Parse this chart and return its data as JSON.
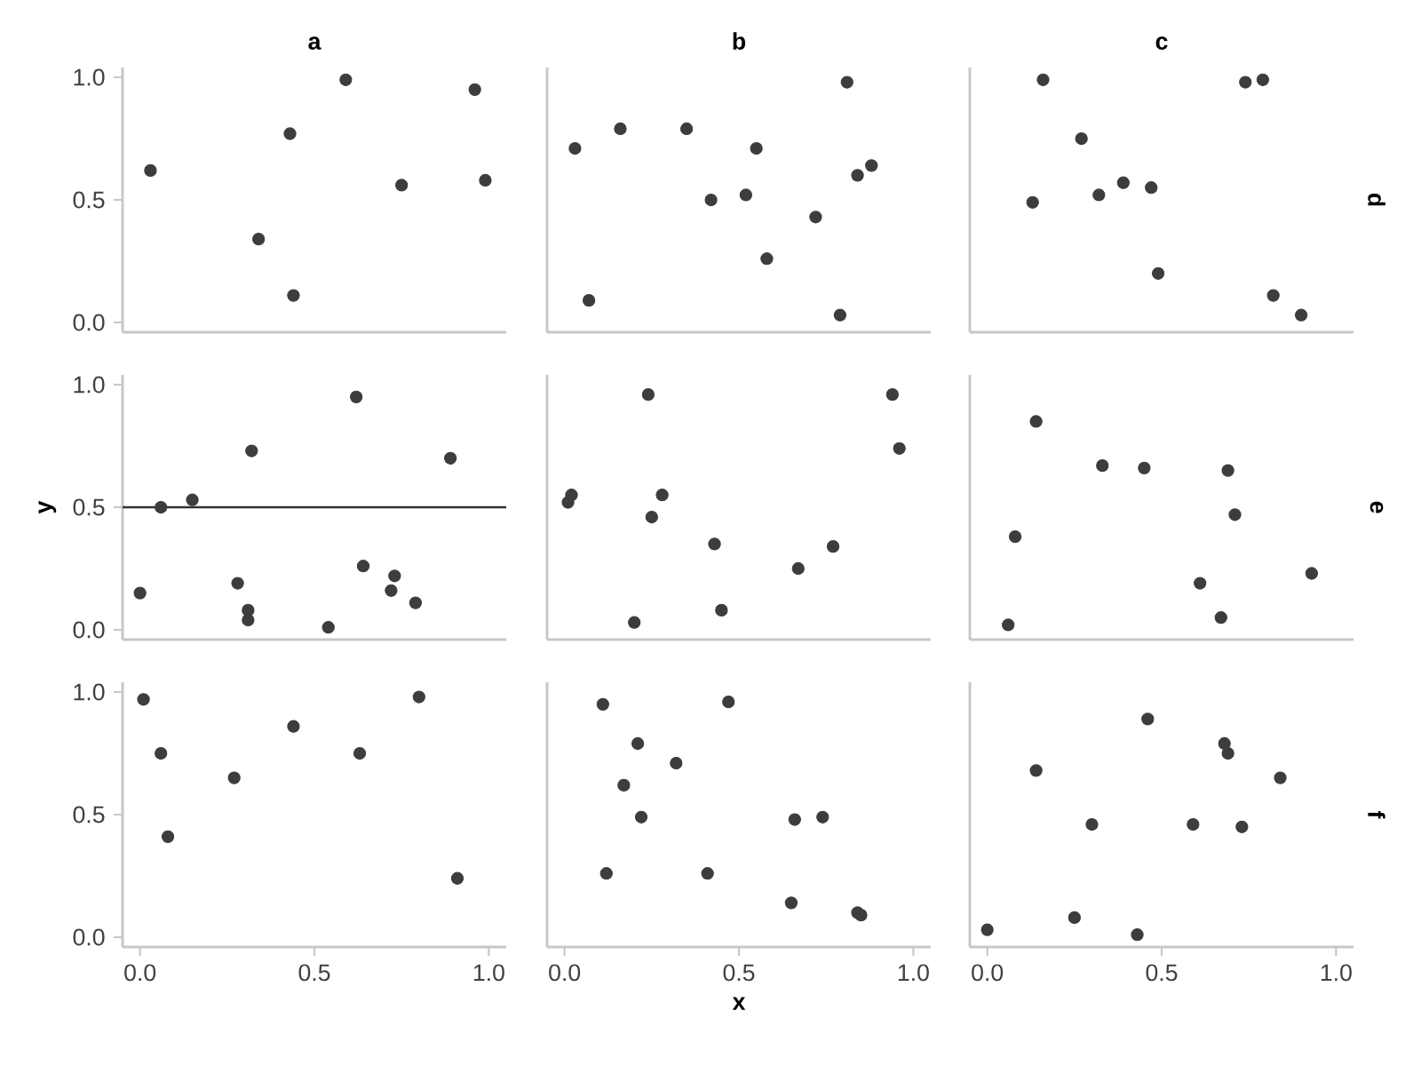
{
  "chart_data": [
    {
      "type": "scatter",
      "title": "a",
      "x": [
        0.03,
        0.34,
        0.43,
        0.44,
        0.59,
        0.75,
        0.96,
        0.99
      ],
      "values": [
        0.62,
        0.34,
        0.77,
        0.11,
        0.99,
        0.56,
        0.95,
        0.58
      ],
      "color": "#3d3d3d",
      "marker": "circle",
      "xlim": [
        -0.05,
        1.05
      ],
      "ylim": [
        -0.04,
        1.04
      ],
      "yticks": [
        {
          "value": 0,
          "label": "0.0"
        },
        {
          "value": 0.5,
          "label": "0.5"
        },
        {
          "value": 1,
          "label": "1.0"
        }
      ],
      "tick_labels": "y"
    },
    {
      "type": "scatter",
      "title": "b",
      "x": [
        0.03,
        0.07,
        0.16,
        0.35,
        0.42,
        0.52,
        0.55,
        0.58,
        0.72,
        0.79,
        0.81,
        0.84,
        0.88
      ],
      "values": [
        0.71,
        0.09,
        0.79,
        0.79,
        0.5,
        0.52,
        0.71,
        0.26,
        0.43,
        0.03,
        0.98,
        0.6,
        0.64
      ],
      "color": "#3d3d3d",
      "marker": "circle",
      "xlim": [
        -0.05,
        1.05
      ],
      "ylim": [
        -0.04,
        1.04
      ],
      "tick_labels": false
    },
    {
      "type": "scatter",
      "title": "c",
      "y2label": "d",
      "x": [
        0.13,
        0.16,
        0.27,
        0.32,
        0.39,
        0.47,
        0.49,
        0.74,
        0.79,
        0.82,
        0.9
      ],
      "values": [
        0.49,
        0.99,
        0.75,
        0.52,
        0.57,
        0.55,
        0.2,
        0.98,
        0.99,
        0.11,
        0.03
      ],
      "color": "#3d3d3d",
      "marker": "circle",
      "xlim": [
        -0.05,
        1.05
      ],
      "ylim": [
        -0.04,
        1.04
      ],
      "tick_labels": false
    },
    {
      "type": "scatter",
      "ylabel": "y",
      "x": [
        0.0,
        0.06,
        0.15,
        0.28,
        0.32,
        0.31,
        0.31,
        0.54,
        0.62,
        0.64,
        0.72,
        0.73,
        0.79,
        0.89
      ],
      "values": [
        0.15,
        0.5,
        0.53,
        0.19,
        0.73,
        0.04,
        0.08,
        0.01,
        0.95,
        0.26,
        0.16,
        0.22,
        0.11,
        0.7
      ],
      "color": "#3d3d3d",
      "marker": "circle",
      "xlim": [
        -0.05,
        1.05
      ],
      "ylim": [
        -0.04,
        1.04
      ],
      "yticks": [
        {
          "value": 0,
          "label": "0.0"
        },
        {
          "value": 0.5,
          "label": "0.5"
        },
        {
          "value": 1,
          "label": "1.0"
        }
      ],
      "tick_labels": "y",
      "ref_lines": [
        {
          "axis": "y",
          "value": 0.5,
          "color": "#333333"
        }
      ]
    },
    {
      "type": "scatter",
      "x": [
        0.01,
        0.02,
        0.2,
        0.24,
        0.25,
        0.28,
        0.43,
        0.45,
        0.67,
        0.77,
        0.94,
        0.96
      ],
      "values": [
        0.52,
        0.55,
        0.03,
        0.96,
        0.46,
        0.55,
        0.35,
        0.08,
        0.25,
        0.34,
        0.96,
        0.74
      ],
      "color": "#3d3d3d",
      "marker": "circle",
      "xlim": [
        -0.05,
        1.05
      ],
      "ylim": [
        -0.04,
        1.04
      ],
      "tick_labels": false
    },
    {
      "type": "scatter",
      "y2label": "e",
      "x": [
        0.06,
        0.08,
        0.14,
        0.33,
        0.45,
        0.61,
        0.67,
        0.69,
        0.71,
        0.93
      ],
      "values": [
        0.02,
        0.38,
        0.85,
        0.67,
        0.66,
        0.19,
        0.05,
        0.65,
        0.47,
        0.23
      ],
      "color": "#3d3d3d",
      "marker": "circle",
      "xlim": [
        -0.05,
        1.05
      ],
      "ylim": [
        -0.04,
        1.04
      ],
      "tick_labels": false
    },
    {
      "type": "scatter",
      "x": [
        0.01,
        0.06,
        0.08,
        0.27,
        0.44,
        0.63,
        0.8,
        0.91
      ],
      "values": [
        0.97,
        0.75,
        0.41,
        0.65,
        0.86,
        0.75,
        0.98,
        0.24
      ],
      "color": "#3d3d3d",
      "marker": "circle",
      "xlim": [
        -0.05,
        1.05
      ],
      "ylim": [
        -0.04,
        1.04
      ],
      "xticks": [
        {
          "value": 0,
          "label": "0.0"
        },
        {
          "value": 0.5,
          "label": "0.5"
        },
        {
          "value": 1,
          "label": "1.0"
        }
      ],
      "yticks": [
        {
          "value": 0,
          "label": "0.0"
        },
        {
          "value": 0.5,
          "label": "0.5"
        },
        {
          "value": 1,
          "label": "1.0"
        }
      ]
    },
    {
      "type": "scatter",
      "xlabel": "x",
      "x": [
        0.11,
        0.12,
        0.17,
        0.21,
        0.22,
        0.32,
        0.41,
        0.47,
        0.65,
        0.66,
        0.74,
        0.84,
        0.85
      ],
      "values": [
        0.95,
        0.26,
        0.62,
        0.79,
        0.49,
        0.71,
        0.26,
        0.96,
        0.14,
        0.48,
        0.49,
        0.1,
        0.09
      ],
      "color": "#3d3d3d",
      "marker": "circle",
      "xlim": [
        -0.05,
        1.05
      ],
      "ylim": [
        -0.04,
        1.04
      ],
      "xticks": [
        {
          "value": 0,
          "label": "0.0"
        },
        {
          "value": 0.5,
          "label": "0.5"
        },
        {
          "value": 1,
          "label": "1.0"
        }
      ],
      "tick_labels": "x"
    },
    {
      "type": "scatter",
      "y2label": "f",
      "x": [
        0.0,
        0.14,
        0.25,
        0.3,
        0.46,
        0.59,
        0.68,
        0.69,
        0.73,
        0.43,
        0.84
      ],
      "values": [
        0.03,
        0.68,
        0.08,
        0.46,
        0.89,
        0.46,
        0.79,
        0.75,
        0.45,
        0.01,
        0.65
      ],
      "color": "#3d3d3d",
      "marker": "circle",
      "xlim": [
        -0.05,
        1.05
      ],
      "ylim": [
        -0.04,
        1.04
      ],
      "xticks": [
        {
          "value": 0,
          "label": "0.0"
        },
        {
          "value": 0.5,
          "label": "0.5"
        },
        {
          "value": 1,
          "label": "1.0"
        }
      ],
      "tick_labels": "x"
    }
  ]
}
